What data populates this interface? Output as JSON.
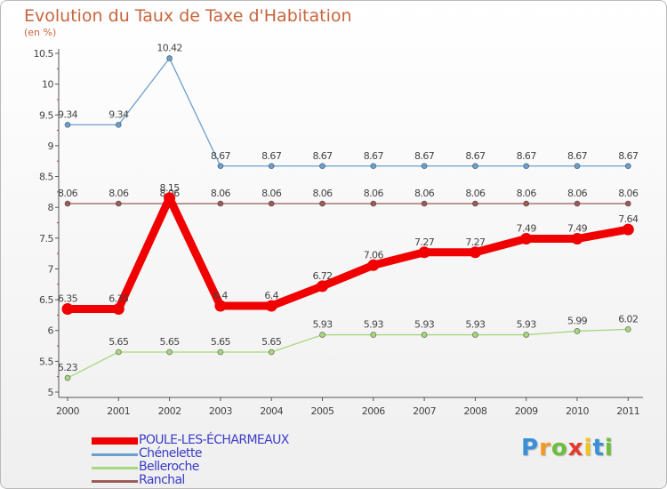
{
  "header": {
    "title": "Evolution du Taux de Taxe d'Habitation",
    "subtitle": "(en %)"
  },
  "chart_data": {
    "type": "line",
    "title": "Evolution du Taux de Taxe d'Habitation",
    "ylabel": "(en %)",
    "xlabel": "",
    "x": [
      "2000",
      "2001",
      "2002",
      "2003",
      "2004",
      "2005",
      "2006",
      "2007",
      "2008",
      "2009",
      "2010",
      "2011"
    ],
    "ylim": [
      5,
      10.5
    ],
    "yticks": [
      "5",
      "5.5",
      "6",
      "6.5",
      "7",
      "7.5",
      "8",
      "8.5",
      "9",
      "9.5",
      "10",
      "10.5"
    ],
    "grid": false,
    "legend": "bottom-left",
    "series": [
      {
        "name": "Chénelette",
        "color": "#6a9fcf",
        "labels": [
          "9.34",
          "9.34",
          "10.42",
          "8.67",
          "8.67",
          "8.67",
          "8.67",
          "8.67",
          "8.67",
          "8.67",
          "8.67",
          "8.67"
        ],
        "values": [
          9.34,
          9.34,
          10.42,
          8.67,
          8.67,
          8.67,
          8.67,
          8.67,
          8.67,
          8.67,
          8.67,
          8.67
        ]
      },
      {
        "name": "Ranchal",
        "color": "#9c5a5a",
        "labels": [
          "8.06",
          "8.06",
          "8.06",
          "8.06",
          "8.06",
          "8.06",
          "8.06",
          "8.06",
          "8.06",
          "8.06",
          "8.06",
          "8.06"
        ],
        "values": [
          8.06,
          8.06,
          8.06,
          8.06,
          8.06,
          8.06,
          8.06,
          8.06,
          8.06,
          8.06,
          8.06,
          8.06
        ]
      },
      {
        "name": "Belleroche",
        "color": "#a7d77e",
        "labels": [
          "5.23",
          "5.65",
          "5.65",
          "5.65",
          "5.65",
          "5.93",
          "5.93",
          "5.93",
          "5.93",
          "5.93",
          "5.99",
          "6.02"
        ],
        "values": [
          5.23,
          5.65,
          5.65,
          5.65,
          5.65,
          5.93,
          5.93,
          5.93,
          5.93,
          5.93,
          5.99,
          6.02
        ]
      },
      {
        "name": "POULE-LES-ÉCHARMEAUX",
        "color": "#f00000",
        "labels": [
          "6.35",
          "6.35",
          "8.15",
          "6.4",
          "6.4",
          "6.72",
          "7.06",
          "7.27",
          "7.27",
          "7.49",
          "7.49",
          "7.64"
        ],
        "values": [
          6.35,
          6.35,
          8.15,
          6.4,
          6.4,
          6.72,
          7.06,
          7.27,
          7.27,
          7.49,
          7.49,
          7.64
        ]
      }
    ],
    "legend_order": [
      "POULE-LES-ÉCHARMEAUX",
      "Chénelette",
      "Belleroche",
      "Ranchal"
    ]
  },
  "legend": {
    "items": [
      {
        "label": "POULE-LES-ÉCHARMEAUX",
        "color": "#f00000"
      },
      {
        "label": "Chénelette",
        "color": "#6a9fcf"
      },
      {
        "label": "Belleroche",
        "color": "#a7d77e"
      },
      {
        "label": "Ranchal",
        "color": "#9c5a5a"
      }
    ]
  },
  "logo": {
    "letters": [
      "P",
      "r",
      "o",
      "x",
      "i",
      "t",
      "i"
    ],
    "colors": [
      "#3a8fd8",
      "#f29a1d",
      "#6bbf3a",
      "#e53b2c",
      "#f2c21d",
      "#3a8fd8",
      "#6bbf3a"
    ]
  }
}
